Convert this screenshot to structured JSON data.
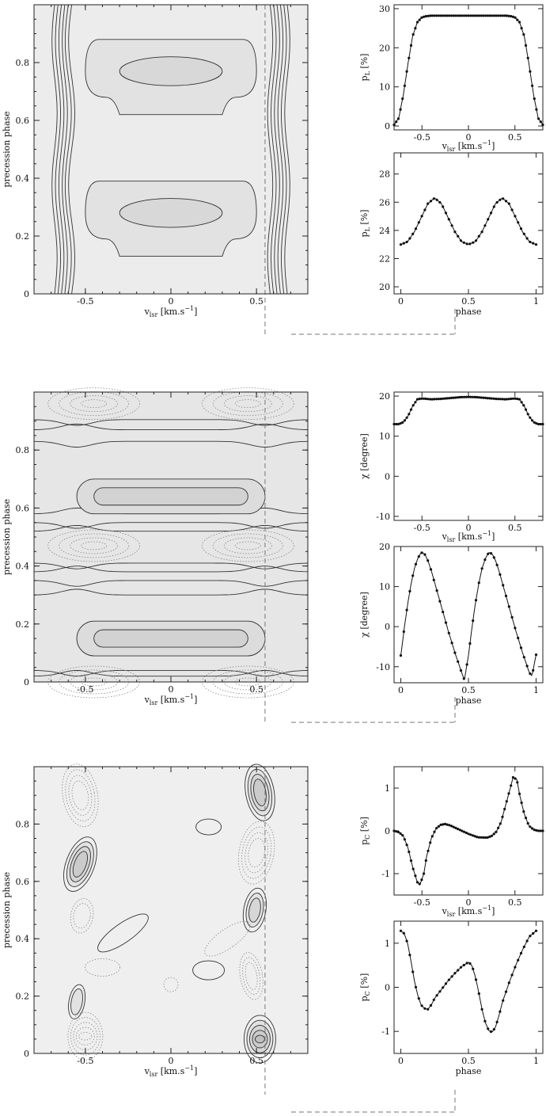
{
  "labels": {
    "precession_phase": "precession phase",
    "vlsr_base": "v",
    "vlsr_sub": "lsr",
    "vlsr_unit_a": " [km.s",
    "vlsr_sup": "−1",
    "vlsr_unit_b": "]",
    "phase": "phase",
    "pL_base": "p",
    "pL_sub": "L",
    "pL_unit": " [%]",
    "chi": "χ [degree]",
    "pC_base": "p",
    "pC_sub": "C",
    "pC_unit": " [%]"
  },
  "chart_data": [
    {
      "id": "map1",
      "type": "heatmap",
      "xlim": [
        -0.8,
        0.8
      ],
      "ylim": [
        0,
        1
      ],
      "xticks": [
        "-0.5",
        "0",
        "0.5"
      ],
      "yticks": [
        "0",
        "0.2",
        "0.4",
        "0.6",
        "0.8"
      ],
      "xlabel": "v_lsr [km.s^-1]",
      "ylabel": "precession phase",
      "dashed_markers": {
        "v_lsr": 0.55,
        "phase": 0
      }
    },
    {
      "id": "pl_vlsr",
      "type": "line",
      "xlim": [
        -0.8,
        0.8
      ],
      "ylim": [
        -1,
        31
      ],
      "xticks": [
        "-0.5",
        "0",
        "0.5"
      ],
      "yticks": [
        "0",
        "10",
        "20",
        "30"
      ],
      "xlabel": "v_lsr [km.s^-1]",
      "ylabel": "p_L [%]",
      "x": [
        -0.8,
        -0.75,
        -0.7,
        -0.65,
        -0.6,
        -0.55,
        -0.5,
        -0.45,
        -0.4,
        -0.3,
        -0.2,
        -0.1,
        0,
        0.1,
        0.2,
        0.3,
        0.4,
        0.45,
        0.5,
        0.55,
        0.6,
        0.65,
        0.7,
        0.75,
        0.8
      ],
      "y": [
        0.3,
        2,
        8,
        16,
        23,
        26.5,
        27.8,
        28.1,
        28.2,
        28.2,
        28.2,
        28.2,
        28.2,
        28.2,
        28.2,
        28.2,
        28.2,
        28.1,
        27.8,
        26.5,
        23,
        16,
        8,
        2,
        0.3
      ]
    },
    {
      "id": "pl_phase",
      "type": "line",
      "xlim": [
        -0.05,
        1.05
      ],
      "ylim": [
        19.5,
        29.5
      ],
      "xticks": [
        "0",
        "0.5",
        "1"
      ],
      "yticks": [
        "20",
        "22",
        "24",
        "26",
        "28"
      ],
      "xlabel": "phase",
      "ylabel": "p_L [%]",
      "x": [
        0,
        0.05,
        0.1,
        0.15,
        0.2,
        0.25,
        0.3,
        0.35,
        0.4,
        0.45,
        0.5,
        0.55,
        0.6,
        0.65,
        0.7,
        0.75,
        0.8,
        0.85,
        0.9,
        0.95,
        1
      ],
      "y": [
        23.0,
        23.2,
        23.9,
        24.9,
        25.9,
        26.3,
        25.9,
        24.9,
        23.9,
        23.2,
        23.0,
        23.2,
        23.9,
        24.9,
        25.9,
        26.3,
        25.9,
        24.9,
        23.9,
        23.2,
        23.0
      ]
    },
    {
      "id": "map2",
      "type": "heatmap",
      "xlim": [
        -0.8,
        0.8
      ],
      "ylim": [
        0,
        1
      ],
      "xticks": [
        "-0.5",
        "0",
        "0.5"
      ],
      "yticks": [
        "0",
        "0.2",
        "0.4",
        "0.6",
        "0.8"
      ],
      "xlabel": "v_lsr [km.s^-1]",
      "ylabel": "precession phase",
      "dashed_markers": {
        "v_lsr": 0.55,
        "phase": 0
      }
    },
    {
      "id": "chi_vlsr",
      "type": "line",
      "xlim": [
        -0.8,
        0.8
      ],
      "ylim": [
        -11,
        21
      ],
      "xticks": [
        "-0.5",
        "0",
        "0.5"
      ],
      "yticks": [
        "-10",
        "0",
        "10",
        "20"
      ],
      "xlabel": "v_lsr [km.s^-1]",
      "ylabel": "χ [degree]",
      "x": [
        -0.8,
        -0.75,
        -0.7,
        -0.65,
        -0.6,
        -0.55,
        -0.5,
        -0.4,
        -0.3,
        -0.2,
        -0.1,
        0,
        0.1,
        0.2,
        0.3,
        0.4,
        0.5,
        0.55,
        0.6,
        0.65,
        0.7,
        0.75,
        0.8
      ],
      "y": [
        13.0,
        13.0,
        13.5,
        15.0,
        17.5,
        19.2,
        19.4,
        19.2,
        19.3,
        19.5,
        19.7,
        19.8,
        19.7,
        19.5,
        19.3,
        19.2,
        19.4,
        19.2,
        17.5,
        15.0,
        13.5,
        13.0,
        13.0
      ]
    },
    {
      "id": "chi_phase",
      "type": "line",
      "xlim": [
        -0.05,
        1.05
      ],
      "ylim": [
        -14,
        20
      ],
      "xticks": [
        "0",
        "0.5",
        "1"
      ],
      "yticks": [
        "-10",
        "0",
        "10",
        "20"
      ],
      "xlabel": "phase",
      "ylabel": "χ [degree]",
      "x": [
        0,
        0.025,
        0.05,
        0.075,
        0.1,
        0.125,
        0.15,
        0.175,
        0.2,
        0.225,
        0.25,
        0.3,
        0.35,
        0.4,
        0.45,
        0.47,
        0.5,
        0.525,
        0.55,
        0.575,
        0.6,
        0.625,
        0.65,
        0.675,
        0.7,
        0.725,
        0.75,
        0.8,
        0.85,
        0.9,
        0.95,
        0.97,
        1
      ],
      "y": [
        -7.2,
        -0.5,
        5.5,
        10.5,
        14.5,
        17.0,
        18.5,
        18.2,
        16.5,
        14.0,
        11.0,
        5.0,
        -1.0,
        -6.5,
        -11.5,
        -13.3,
        -7.2,
        -0.5,
        5.5,
        10.5,
        14.5,
        17.0,
        18.5,
        18.2,
        16.5,
        14.0,
        11.0,
        5.0,
        -1.0,
        -6.5,
        -11.5,
        -12.3,
        -7.0
      ]
    },
    {
      "id": "map3",
      "type": "heatmap",
      "xlim": [
        -0.8,
        0.8
      ],
      "ylim": [
        0,
        1
      ],
      "xticks": [
        "-0.5",
        "0",
        "0.5"
      ],
      "yticks": [
        "0",
        "0.2",
        "0.4",
        "0.6",
        "0.8"
      ],
      "xlabel": "v_lsr [km.s^-1]",
      "ylabel": "precession phase",
      "dashed_markers": {
        "v_lsr": 0.55,
        "phase": 0
      }
    },
    {
      "id": "pc_vlsr",
      "type": "line",
      "xlim": [
        -0.8,
        0.8
      ],
      "ylim": [
        -1.5,
        1.5
      ],
      "xticks": [
        "-0.5",
        "0",
        "0.5"
      ],
      "yticks": [
        "-1",
        "0",
        "1"
      ],
      "xlabel": "v_lsr [km.s^-1]",
      "ylabel": "p_C [%]",
      "x": [
        -0.8,
        -0.75,
        -0.7,
        -0.65,
        -0.6,
        -0.55,
        -0.52,
        -0.48,
        -0.45,
        -0.4,
        -0.35,
        -0.3,
        -0.25,
        -0.2,
        -0.1,
        0,
        0.1,
        0.2,
        0.25,
        0.3,
        0.35,
        0.4,
        0.45,
        0.48,
        0.52,
        0.55,
        0.6,
        0.65,
        0.7,
        0.75,
        0.8
      ],
      "y": [
        0,
        -0.03,
        -0.12,
        -0.4,
        -0.85,
        -1.2,
        -1.25,
        -1.0,
        -0.6,
        -0.18,
        0.05,
        0.14,
        0.16,
        0.13,
        0.03,
        -0.07,
        -0.15,
        -0.16,
        -0.12,
        -0.02,
        0.2,
        0.6,
        1.0,
        1.25,
        1.2,
        0.85,
        0.4,
        0.12,
        0.03,
        0,
        0
      ]
    },
    {
      "id": "pc_phase",
      "type": "line",
      "xlim": [
        -0.05,
        1.05
      ],
      "ylim": [
        -1.5,
        1.5
      ],
      "xticks": [
        "0",
        "0.5",
        "1"
      ],
      "yticks": [
        "-1",
        "0",
        "1"
      ],
      "xlabel": "phase",
      "ylabel": "p_C [%]",
      "x": [
        0,
        0.025,
        0.05,
        0.075,
        0.1,
        0.125,
        0.15,
        0.175,
        0.2,
        0.225,
        0.25,
        0.3,
        0.35,
        0.4,
        0.45,
        0.5,
        0.525,
        0.55,
        0.575,
        0.6,
        0.625,
        0.65,
        0.675,
        0.7,
        0.725,
        0.75,
        0.8,
        0.85,
        0.9,
        0.95,
        1
      ],
      "y": [
        1.28,
        1.22,
        1.0,
        0.6,
        0.15,
        -0.18,
        -0.4,
        -0.48,
        -0.5,
        -0.4,
        -0.25,
        -0.05,
        0.15,
        0.32,
        0.47,
        0.57,
        0.5,
        0.25,
        -0.1,
        -0.5,
        -0.8,
        -0.98,
        -1.02,
        -0.9,
        -0.65,
        -0.35,
        0.1,
        0.5,
        0.85,
        1.15,
        1.28
      ]
    }
  ]
}
